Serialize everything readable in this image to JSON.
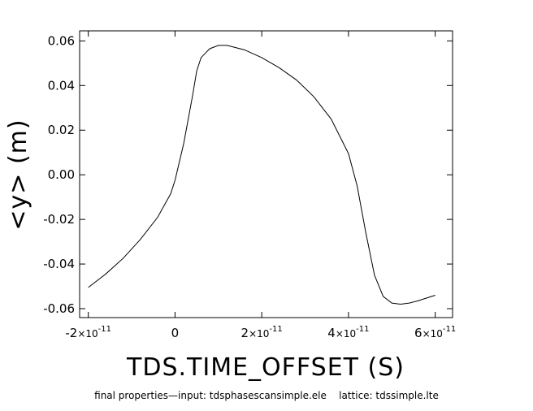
{
  "chart_data": {
    "type": "line",
    "title": "",
    "xlabel": "TDS.TIME_OFFSET (S)",
    "ylabel": "<y> (m)",
    "caption": "final properties—input: tdsphasescansimple.ele    lattice: tdssimple.lte",
    "xlim": [
      -2.2e-11,
      6.4e-11
    ],
    "ylim": [
      -0.064,
      0.0645
    ],
    "grid": false,
    "x_ticks": [
      {
        "value": -2e-11,
        "mantissa": "-2",
        "exp": "-11"
      },
      {
        "value": 0,
        "mantissa": "0",
        "exp": ""
      },
      {
        "value": 2e-11,
        "mantissa": "2",
        "exp": "-11"
      },
      {
        "value": 4e-11,
        "mantissa": "4",
        "exp": "-11"
      },
      {
        "value": 6e-11,
        "mantissa": "6",
        "exp": "-11"
      }
    ],
    "y_ticks": [
      {
        "value": 0.06,
        "label": "0.06"
      },
      {
        "value": 0.04,
        "label": "0.04"
      },
      {
        "value": 0.02,
        "label": "0.02"
      },
      {
        "value": 0.0,
        "label": "0.00"
      },
      {
        "value": -0.02,
        "label": "-0.02"
      },
      {
        "value": -0.04,
        "label": "-0.04"
      },
      {
        "value": -0.06,
        "label": "-0.06"
      }
    ],
    "series": [
      {
        "color": "#000000",
        "x": [
          -2e-11,
          -1.6e-11,
          -1.2e-11,
          -8e-12,
          -4e-12,
          -1e-12,
          0,
          2e-12,
          4e-12,
          5e-12,
          6e-12,
          8e-12,
          1e-11,
          1.2e-11,
          1.6e-11,
          2e-11,
          2.4e-11,
          2.8e-11,
          3.2e-11,
          3.6e-11,
          4e-11,
          4.2e-11,
          4.4e-11,
          4.6e-11,
          4.8e-11,
          5e-11,
          5.2e-11,
          5.4e-11,
          5.6e-11,
          6e-11
        ],
        "y": [
          -0.0505,
          -0.0445,
          -0.0375,
          -0.029,
          -0.019,
          -0.0085,
          -0.0025,
          0.014,
          0.035,
          0.0465,
          0.0525,
          0.0565,
          0.058,
          0.058,
          0.056,
          0.0525,
          0.048,
          0.0425,
          0.035,
          0.025,
          0.0095,
          -0.005,
          -0.026,
          -0.045,
          -0.0545,
          -0.0575,
          -0.058,
          -0.0575,
          -0.0565,
          -0.054
        ]
      }
    ]
  }
}
